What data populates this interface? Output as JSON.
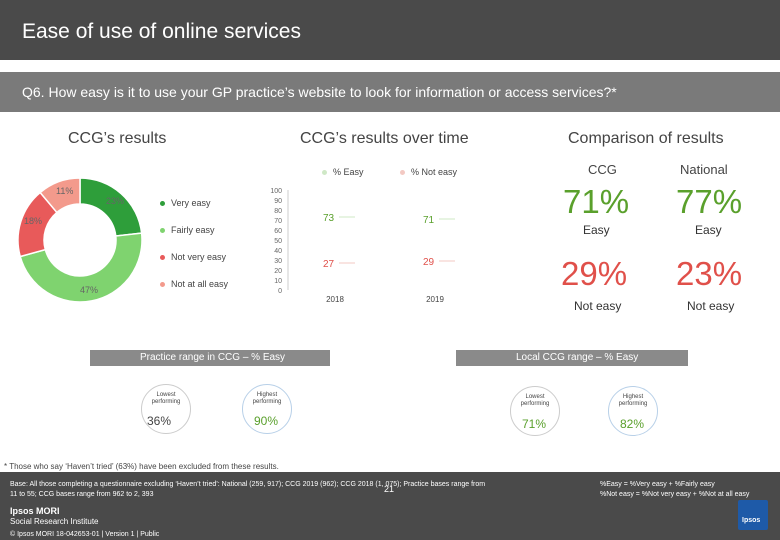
{
  "header": {
    "title": "Ease of use of online services",
    "question": "Q6. How easy is it to use your GP practice’s website to look for information or access services?*"
  },
  "sections": {
    "ccg_results": "CCG’s results",
    "over_time": "CCG’s results over time",
    "comparison": "Comparison of results"
  },
  "colors": {
    "very_easy": "#2e9e3a",
    "fairly_easy": "#7fd36f",
    "not_very_easy": "#e85a5a",
    "not_at_all_easy": "#f39a8c",
    "easy_text": "#5aa02c",
    "not_easy_text": "#e0504a",
    "range_bar": "#8a8a8a"
  },
  "chart_data": [
    {
      "type": "pie",
      "title": "CCG’s results",
      "slices": [
        {
          "label": "Very easy",
          "value": 23,
          "display": "23%"
        },
        {
          "label": "Fairly easy",
          "value": 47,
          "display": "47%"
        },
        {
          "label": "Not very easy",
          "value": 18,
          "display": "18%"
        },
        {
          "label": "Not at all easy",
          "value": 11,
          "display": "11%"
        }
      ]
    },
    {
      "type": "line",
      "title": "CCG’s results over time",
      "x": [
        "2018",
        "2019"
      ],
      "ylim": [
        0,
        100
      ],
      "yticks": [
        "0",
        "10",
        "20",
        "30",
        "40",
        "50",
        "60",
        "70",
        "80",
        "90",
        "100"
      ],
      "series": [
        {
          "name": "% Easy",
          "values": [
            73,
            71
          ]
        },
        {
          "name": "% Not easy",
          "values": [
            27,
            29
          ]
        }
      ]
    }
  ],
  "comparison": {
    "ccg_label": "CCG",
    "national_label": "National",
    "ccg_easy": "71%",
    "national_easy": "77%",
    "easy_label": "Easy",
    "ccg_not_easy": "29%",
    "national_not_easy": "23%",
    "not_easy_label": "Not easy"
  },
  "practice_range": {
    "title": "Practice range in CCG – % Easy",
    "lowest_label": "Lowest performing",
    "highest_label": "Highest performing",
    "lowest_value": "36%",
    "highest_value": "90%"
  },
  "local_range": {
    "title": "Local CCG range – % Easy",
    "lowest_label": "Lowest performing",
    "highest_label": "Highest performing",
    "lowest_value": "71%",
    "highest_value": "82%"
  },
  "footnote": "* Those who say ‘Haven’t tried’ (63%) have been excluded from these results.",
  "footer": {
    "base_line1": "Base: All those completing a questionnaire excluding ‘Haven’t tried’: National (259, 917); CCG 2019 (962); CCG 2018 (1, 075); Practice bases range from",
    "base_line2": "11 to 55; CCG bases range from 962 to 2, 393",
    "definitions_line1": "%Easy = %Very easy + %Fairly easy",
    "definitions_line2": "%Not easy = %Not very easy + %Not at all easy",
    "page_number": "21",
    "logo_line1": "Ipsos MORI",
    "logo_line2": "Social Research Institute",
    "copyright": "© Ipsos MORI     18-042653-01 | Version 1 | Public",
    "badge_logo": "Ipsos"
  }
}
